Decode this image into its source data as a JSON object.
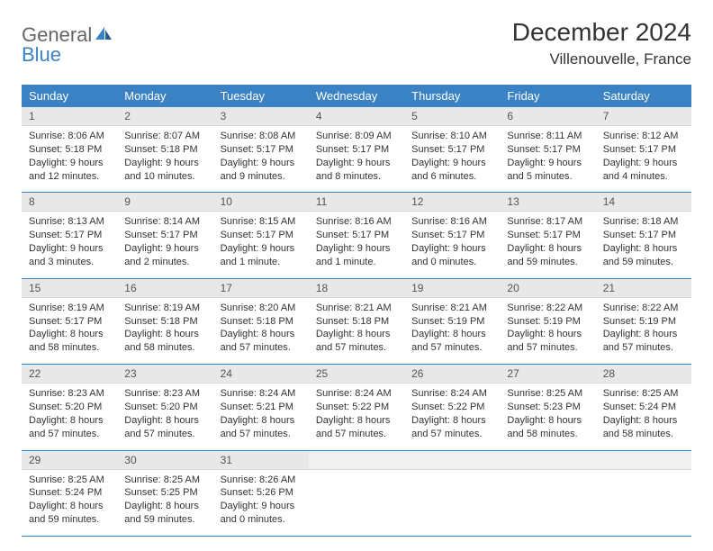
{
  "brand": {
    "part1": "General",
    "part2": "Blue"
  },
  "title": "December 2024",
  "location": "Villenouvelle, France",
  "colors": {
    "header_bg": "#3b82c4",
    "header_text": "#ffffff",
    "daynum_bg": "#e8e8e8",
    "row_border": "#3b82c4",
    "logo_blue": "#3b82c4",
    "logo_gray": "#666666"
  },
  "dayHeaders": [
    "Sunday",
    "Monday",
    "Tuesday",
    "Wednesday",
    "Thursday",
    "Friday",
    "Saturday"
  ],
  "weeks": [
    [
      {
        "n": "1",
        "sr": "Sunrise: 8:06 AM",
        "ss": "Sunset: 5:18 PM",
        "d1": "Daylight: 9 hours",
        "d2": "and 12 minutes."
      },
      {
        "n": "2",
        "sr": "Sunrise: 8:07 AM",
        "ss": "Sunset: 5:18 PM",
        "d1": "Daylight: 9 hours",
        "d2": "and 10 minutes."
      },
      {
        "n": "3",
        "sr": "Sunrise: 8:08 AM",
        "ss": "Sunset: 5:17 PM",
        "d1": "Daylight: 9 hours",
        "d2": "and 9 minutes."
      },
      {
        "n": "4",
        "sr": "Sunrise: 8:09 AM",
        "ss": "Sunset: 5:17 PM",
        "d1": "Daylight: 9 hours",
        "d2": "and 8 minutes."
      },
      {
        "n": "5",
        "sr": "Sunrise: 8:10 AM",
        "ss": "Sunset: 5:17 PM",
        "d1": "Daylight: 9 hours",
        "d2": "and 6 minutes."
      },
      {
        "n": "6",
        "sr": "Sunrise: 8:11 AM",
        "ss": "Sunset: 5:17 PM",
        "d1": "Daylight: 9 hours",
        "d2": "and 5 minutes."
      },
      {
        "n": "7",
        "sr": "Sunrise: 8:12 AM",
        "ss": "Sunset: 5:17 PM",
        "d1": "Daylight: 9 hours",
        "d2": "and 4 minutes."
      }
    ],
    [
      {
        "n": "8",
        "sr": "Sunrise: 8:13 AM",
        "ss": "Sunset: 5:17 PM",
        "d1": "Daylight: 9 hours",
        "d2": "and 3 minutes."
      },
      {
        "n": "9",
        "sr": "Sunrise: 8:14 AM",
        "ss": "Sunset: 5:17 PM",
        "d1": "Daylight: 9 hours",
        "d2": "and 2 minutes."
      },
      {
        "n": "10",
        "sr": "Sunrise: 8:15 AM",
        "ss": "Sunset: 5:17 PM",
        "d1": "Daylight: 9 hours",
        "d2": "and 1 minute."
      },
      {
        "n": "11",
        "sr": "Sunrise: 8:16 AM",
        "ss": "Sunset: 5:17 PM",
        "d1": "Daylight: 9 hours",
        "d2": "and 1 minute."
      },
      {
        "n": "12",
        "sr": "Sunrise: 8:16 AM",
        "ss": "Sunset: 5:17 PM",
        "d1": "Daylight: 9 hours",
        "d2": "and 0 minutes."
      },
      {
        "n": "13",
        "sr": "Sunrise: 8:17 AM",
        "ss": "Sunset: 5:17 PM",
        "d1": "Daylight: 8 hours",
        "d2": "and 59 minutes."
      },
      {
        "n": "14",
        "sr": "Sunrise: 8:18 AM",
        "ss": "Sunset: 5:17 PM",
        "d1": "Daylight: 8 hours",
        "d2": "and 59 minutes."
      }
    ],
    [
      {
        "n": "15",
        "sr": "Sunrise: 8:19 AM",
        "ss": "Sunset: 5:17 PM",
        "d1": "Daylight: 8 hours",
        "d2": "and 58 minutes."
      },
      {
        "n": "16",
        "sr": "Sunrise: 8:19 AM",
        "ss": "Sunset: 5:18 PM",
        "d1": "Daylight: 8 hours",
        "d2": "and 58 minutes."
      },
      {
        "n": "17",
        "sr": "Sunrise: 8:20 AM",
        "ss": "Sunset: 5:18 PM",
        "d1": "Daylight: 8 hours",
        "d2": "and 57 minutes."
      },
      {
        "n": "18",
        "sr": "Sunrise: 8:21 AM",
        "ss": "Sunset: 5:18 PM",
        "d1": "Daylight: 8 hours",
        "d2": "and 57 minutes."
      },
      {
        "n": "19",
        "sr": "Sunrise: 8:21 AM",
        "ss": "Sunset: 5:19 PM",
        "d1": "Daylight: 8 hours",
        "d2": "and 57 minutes."
      },
      {
        "n": "20",
        "sr": "Sunrise: 8:22 AM",
        "ss": "Sunset: 5:19 PM",
        "d1": "Daylight: 8 hours",
        "d2": "and 57 minutes."
      },
      {
        "n": "21",
        "sr": "Sunrise: 8:22 AM",
        "ss": "Sunset: 5:19 PM",
        "d1": "Daylight: 8 hours",
        "d2": "and 57 minutes."
      }
    ],
    [
      {
        "n": "22",
        "sr": "Sunrise: 8:23 AM",
        "ss": "Sunset: 5:20 PM",
        "d1": "Daylight: 8 hours",
        "d2": "and 57 minutes."
      },
      {
        "n": "23",
        "sr": "Sunrise: 8:23 AM",
        "ss": "Sunset: 5:20 PM",
        "d1": "Daylight: 8 hours",
        "d2": "and 57 minutes."
      },
      {
        "n": "24",
        "sr": "Sunrise: 8:24 AM",
        "ss": "Sunset: 5:21 PM",
        "d1": "Daylight: 8 hours",
        "d2": "and 57 minutes."
      },
      {
        "n": "25",
        "sr": "Sunrise: 8:24 AM",
        "ss": "Sunset: 5:22 PM",
        "d1": "Daylight: 8 hours",
        "d2": "and 57 minutes."
      },
      {
        "n": "26",
        "sr": "Sunrise: 8:24 AM",
        "ss": "Sunset: 5:22 PM",
        "d1": "Daylight: 8 hours",
        "d2": "and 57 minutes."
      },
      {
        "n": "27",
        "sr": "Sunrise: 8:25 AM",
        "ss": "Sunset: 5:23 PM",
        "d1": "Daylight: 8 hours",
        "d2": "and 58 minutes."
      },
      {
        "n": "28",
        "sr": "Sunrise: 8:25 AM",
        "ss": "Sunset: 5:24 PM",
        "d1": "Daylight: 8 hours",
        "d2": "and 58 minutes."
      }
    ],
    [
      {
        "n": "29",
        "sr": "Sunrise: 8:25 AM",
        "ss": "Sunset: 5:24 PM",
        "d1": "Daylight: 8 hours",
        "d2": "and 59 minutes."
      },
      {
        "n": "30",
        "sr": "Sunrise: 8:25 AM",
        "ss": "Sunset: 5:25 PM",
        "d1": "Daylight: 8 hours",
        "d2": "and 59 minutes."
      },
      {
        "n": "31",
        "sr": "Sunrise: 8:26 AM",
        "ss": "Sunset: 5:26 PM",
        "d1": "Daylight: 9 hours",
        "d2": "and 0 minutes."
      },
      {
        "empty": true
      },
      {
        "empty": true
      },
      {
        "empty": true
      },
      {
        "empty": true
      }
    ]
  ]
}
